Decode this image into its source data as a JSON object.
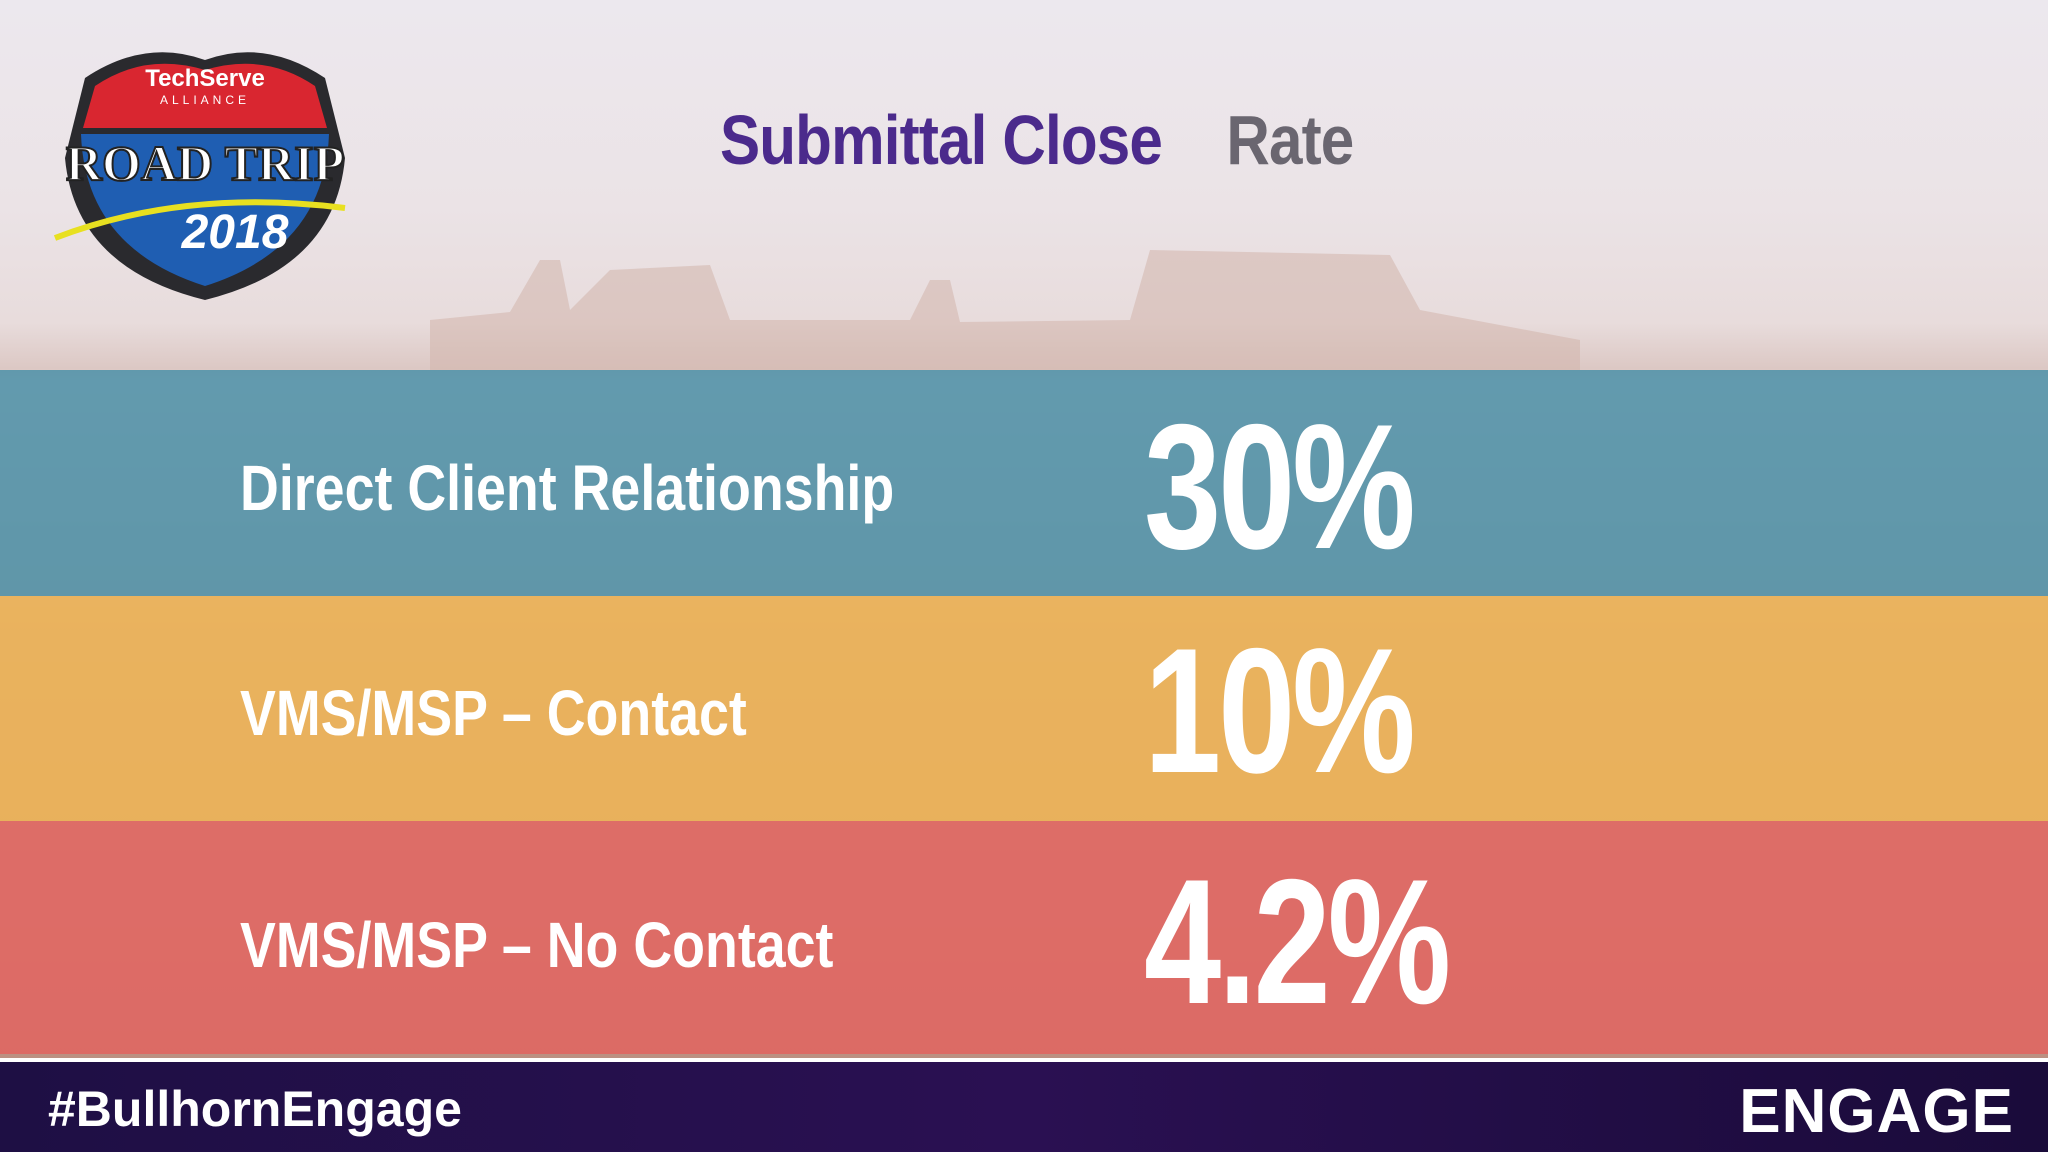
{
  "logo": {
    "top": "TechServe",
    "sub": "ALLIANCE",
    "main": "ROAD TRIP",
    "year": "2018"
  },
  "title": {
    "highlight": "Submittal Close",
    "rest": "Rate"
  },
  "rows": [
    {
      "label": "Direct Client Relationship",
      "value": "30%"
    },
    {
      "label": "VMS/MSP – Contact",
      "value": "10%"
    },
    {
      "label": "VMS/MSP – No Contact",
      "value": "4.2%"
    }
  ],
  "footer": {
    "hashtag": "#BullhornEngage",
    "brand": "ENGAGE"
  }
}
